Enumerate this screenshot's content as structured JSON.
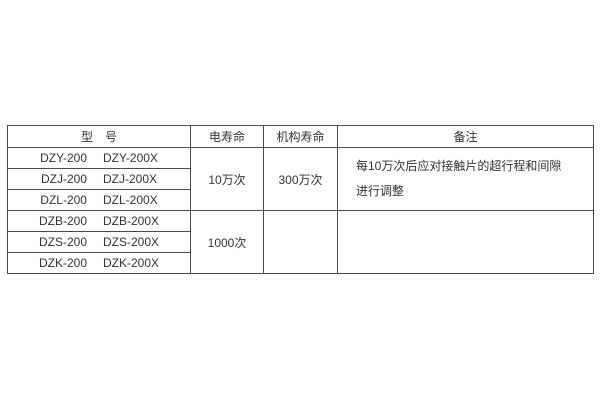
{
  "table": {
    "headers": {
      "model": "型　号",
      "electrical_life": "电寿命",
      "mechanical_life": "机构寿命",
      "remarks": "备注"
    },
    "model_rows": [
      {
        "models": [
          "DZY-200",
          "DZY-200X"
        ]
      },
      {
        "models": [
          "DZJ-200",
          "DZJ-200X"
        ]
      },
      {
        "models": [
          "DZL-200",
          "DZL-200X"
        ]
      },
      {
        "models": [
          "DZB-200",
          "DZB-200X"
        ]
      },
      {
        "models": [
          "DZS-200",
          "DZS-200X"
        ]
      },
      {
        "models": [
          "DZK-200",
          "DZK-200X"
        ]
      }
    ],
    "groups": [
      {
        "electrical_life": "10万次",
        "mechanical_life": "300万次",
        "remarks_lines": [
          "每10万次后应对接触片的超行程和间隙",
          "进行调整"
        ]
      },
      {
        "electrical_life": "1000次",
        "mechanical_life": "",
        "remarks_lines": [
          "",
          ""
        ]
      }
    ]
  },
  "colors": {
    "background": "#ffffff",
    "border": "#4a4a4a",
    "text": "#333333"
  }
}
